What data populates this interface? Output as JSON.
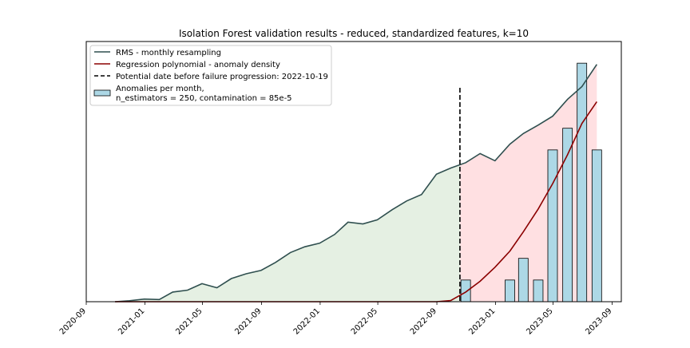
{
  "colors": {
    "rms_line": "#2f4f4f",
    "regression_line": "#8b0000",
    "vline": "#000000",
    "bar_fill": "#add8e6",
    "bar_edge": "#000000",
    "pre_fill": "#e5f0e3",
    "post_fill": "#ffe0e2"
  },
  "chart_data": {
    "type": "line",
    "title": "Isolation Forest validation results - reduced, standardized features, k=10",
    "xlabel": "",
    "ylabel": "",
    "x_ticks": [
      "2020-09",
      "2021-01",
      "2021-05",
      "2021-09",
      "2022-01",
      "2022-05",
      "2022-09",
      "2023-01",
      "2023-05",
      "2023-09"
    ],
    "xlim": [
      "2020-09-01",
      "2023-09-20"
    ],
    "ylim": [
      0,
      1.08
    ],
    "grid": false,
    "legend_position": "top-left",
    "legend": [
      {
        "label": "RMS - monthly resampling",
        "kind": "line"
      },
      {
        "label": "Regression polynomial - anomaly density",
        "kind": "line"
      },
      {
        "label": "Potential date before failure progression: 2022-10-19",
        "kind": "dashed"
      },
      {
        "label": "Anomalies per month,\nn_estimators = 250, contamination = 85e-5",
        "kind": "bar"
      }
    ],
    "vline_date": "2022-10-19",
    "x": [
      "2020-10-31",
      "2020-11-30",
      "2020-12-31",
      "2021-01-31",
      "2021-02-28",
      "2021-03-31",
      "2021-04-30",
      "2021-05-31",
      "2021-06-30",
      "2021-07-31",
      "2021-08-31",
      "2021-09-30",
      "2021-10-31",
      "2021-11-30",
      "2021-12-31",
      "2022-01-31",
      "2022-02-28",
      "2022-03-31",
      "2022-04-30",
      "2022-05-31",
      "2022-06-30",
      "2022-07-31",
      "2022-08-31",
      "2022-09-30",
      "2022-10-31",
      "2022-11-30",
      "2022-12-31",
      "2023-01-31",
      "2023-02-28",
      "2023-03-31",
      "2023-04-30",
      "2023-05-31",
      "2023-06-30",
      "2023-07-31"
    ],
    "series": [
      {
        "name": "RMS - monthly resampling",
        "values": [
          0.0,
          0.004,
          0.011,
          0.009,
          0.04,
          0.048,
          0.075,
          0.058,
          0.096,
          0.116,
          0.13,
          0.163,
          0.204,
          0.228,
          0.243,
          0.279,
          0.33,
          0.323,
          0.34,
          0.382,
          0.418,
          0.445,
          0.529,
          0.555,
          0.577,
          0.615,
          0.585,
          0.654,
          0.698,
          0.733,
          0.77,
          0.84,
          0.893,
          0.985
        ]
      },
      {
        "name": "Regression polynomial - anomaly density",
        "values": [
          0,
          0,
          0,
          0,
          0,
          0,
          0,
          0,
          0,
          0,
          0,
          0,
          0,
          0,
          0,
          0,
          0,
          0,
          0,
          0,
          0,
          0,
          0,
          0.005,
          0.04,
          0.085,
          0.143,
          0.21,
          0.29,
          0.385,
          0.49,
          0.61,
          0.74,
          0.83
        ]
      },
      {
        "name": "Anomalies per month,\nn_estimators = 250, contamination = 85e-5",
        "kind": "bar",
        "values": [
          0,
          0,
          0,
          0,
          0,
          0,
          0,
          0,
          0,
          0,
          0,
          0,
          0,
          0,
          0,
          0,
          0,
          0,
          0,
          0,
          0,
          0,
          0,
          0,
          0.09,
          0,
          0,
          0.09,
          0.18,
          0.09,
          0.63,
          0.72,
          0.99,
          0.63
        ]
      }
    ]
  }
}
